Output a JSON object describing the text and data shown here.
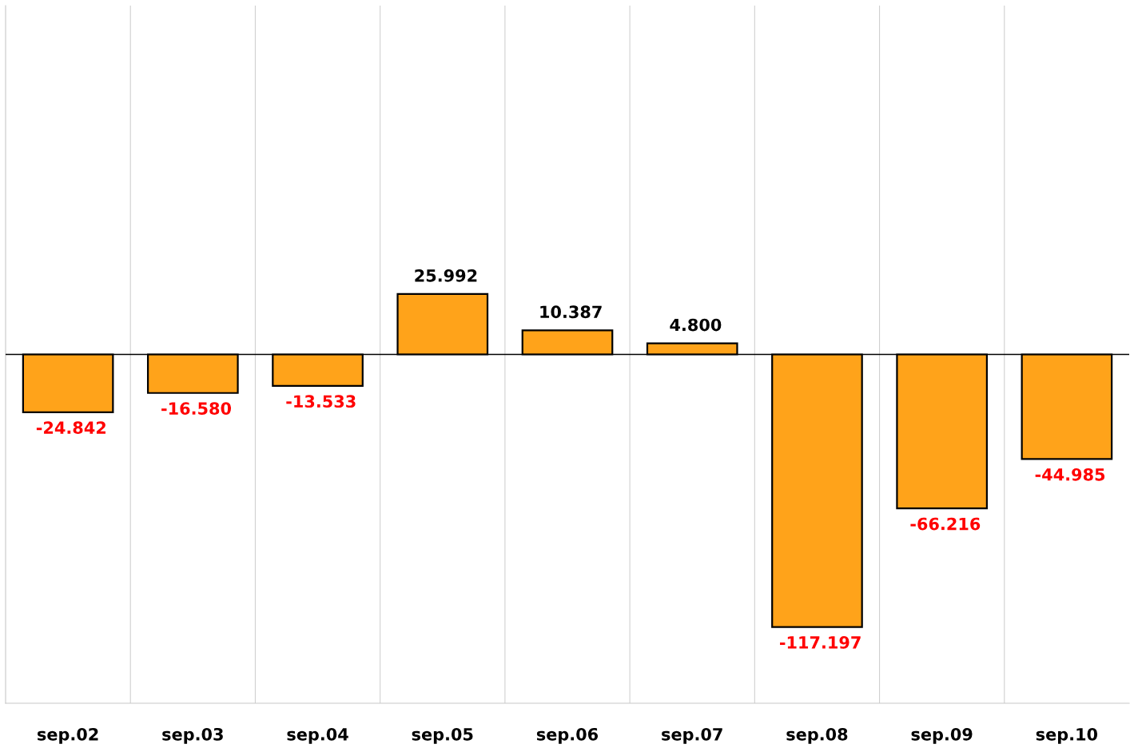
{
  "chart_data": {
    "type": "bar",
    "categories": [
      "sep.02",
      "sep.03",
      "sep.04",
      "sep.05",
      "sep.06",
      "sep.07",
      "sep.08",
      "sep.09",
      "sep.10"
    ],
    "values": [
      -24.842,
      -16.58,
      -13.533,
      25.992,
      10.387,
      4.8,
      -117.197,
      -66.216,
      -44.985
    ],
    "value_labels": [
      "-24.842",
      "-16.580",
      "-13.533",
      "25.992",
      "10.387",
      "4.800",
      "-117.197",
      "-66.216",
      "-44.985"
    ],
    "color": "#ffa31a",
    "ylim": [
      -150,
      150
    ],
    "grid": "x",
    "tick_labels": "x"
  }
}
